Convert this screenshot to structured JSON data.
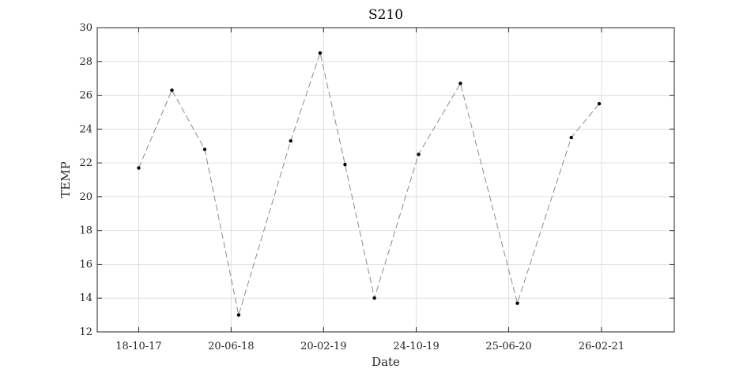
{
  "chart_data": {
    "type": "line",
    "title": "S210",
    "xlabel": "Date",
    "ylabel": "TEMP",
    "ylim": [
      12,
      30
    ],
    "yticks": [
      12,
      14,
      16,
      18,
      20,
      22,
      24,
      26,
      28,
      30
    ],
    "xlim": [
      "2017-06-30",
      "2021-09-07"
    ],
    "xticks": [
      {
        "date": "2017-10-18",
        "label": "18-10-17"
      },
      {
        "date": "2018-06-20",
        "label": "20-06-18"
      },
      {
        "date": "2019-02-20",
        "label": "20-02-19"
      },
      {
        "date": "2019-10-24",
        "label": "24-10-19"
      },
      {
        "date": "2020-06-25",
        "label": "25-06-20"
      },
      {
        "date": "2021-02-26",
        "label": "26-02-21"
      }
    ],
    "grid": true,
    "line_style": "dashed",
    "line_color": "#8c8c8c",
    "marker_color": "#000000",
    "series": [
      {
        "points": [
          {
            "x": "2017-10-18",
            "y": 21.7
          },
          {
            "x": "2018-01-14",
            "y": 26.3
          },
          {
            "x": "2018-04-11",
            "y": 22.8
          },
          {
            "x": "2018-07-10",
            "y": 13.0
          },
          {
            "x": "2018-11-25",
            "y": 23.3
          },
          {
            "x": "2019-02-11",
            "y": 28.5
          },
          {
            "x": "2019-04-18",
            "y": 21.9
          },
          {
            "x": "2019-07-05",
            "y": 14.0
          },
          {
            "x": "2019-10-30",
            "y": 22.5
          },
          {
            "x": "2020-02-18",
            "y": 26.7
          },
          {
            "x": "2020-07-18",
            "y": 13.7
          },
          {
            "x": "2020-12-08",
            "y": 23.5
          },
          {
            "x": "2021-02-20",
            "y": 25.5
          }
        ]
      }
    ]
  }
}
